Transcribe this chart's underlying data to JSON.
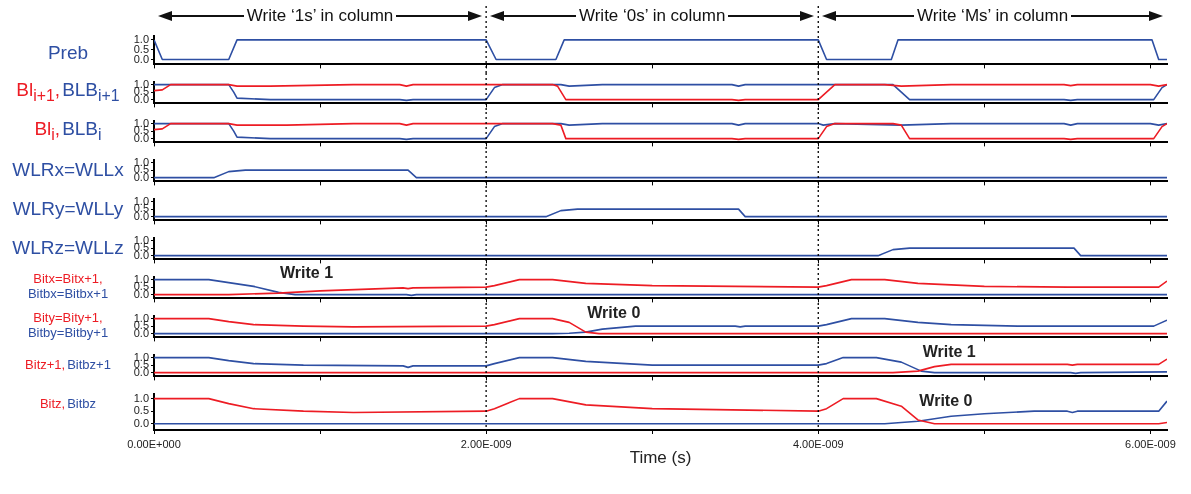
{
  "chart_data": [
    {
      "type": "line",
      "xlim": [
        0,
        6.1e-09
      ],
      "ylim": [
        -0.25,
        1.2
      ],
      "tick_labels": "y",
      "xticks": [
        {
          "value": 0,
          "label": null
        },
        {
          "value": 1e-09,
          "label": null
        },
        {
          "value": 2e-09,
          "label": null
        },
        {
          "value": 3e-09,
          "label": null
        },
        {
          "value": 4e-09,
          "label": null
        },
        {
          "value": 5e-09,
          "label": null
        },
        {
          "value": 6e-09,
          "label": null
        }
      ],
      "yticks": [
        {
          "value": 0,
          "label": "0.0"
        },
        {
          "value": 0.5,
          "label": "0.5"
        },
        {
          "value": 1,
          "label": "1.0"
        }
      ],
      "ref_lines": [
        {
          "axis": "x",
          "value": 2e-09,
          "line_style": "dotted"
        },
        {
          "axis": "x",
          "value": 4e-09,
          "line_style": "dotted"
        }
      ],
      "annotations": [
        "Write ‘1s’ in column",
        "Write ‘0s’ in column",
        "Write ‘Ms’ in column"
      ],
      "series": [
        {
          "name": "Preb",
          "color": "#2e4fa3",
          "x": [
            0,
            5e-11,
            4.5e-10,
            5e-10,
            2e-09,
            2.06e-09,
            2.42e-09,
            2.47e-09,
            4e-09,
            4.05e-09,
            4.44e-09,
            4.48e-09,
            6.01e-09,
            6.05e-09,
            6.1e-09
          ],
          "values": [
            1,
            0,
            0,
            1,
            1,
            0,
            0,
            1,
            1,
            0,
            0,
            1,
            1,
            0,
            0
          ]
        }
      ]
    },
    {
      "type": "line",
      "xlim": [
        0,
        6.1e-09
      ],
      "ylim": [
        -0.25,
        1.2
      ],
      "tick_labels": "y",
      "xticks": [
        {
          "value": 0,
          "label": null
        },
        {
          "value": 1e-09,
          "label": null
        },
        {
          "value": 2e-09,
          "label": null
        },
        {
          "value": 3e-09,
          "label": null
        },
        {
          "value": 4e-09,
          "label": null
        },
        {
          "value": 5e-09,
          "label": null
        },
        {
          "value": 6e-09,
          "label": null
        }
      ],
      "yticks": [
        {
          "value": 0,
          "label": "0.0"
        },
        {
          "value": 0.5,
          "label": "0.5"
        },
        {
          "value": 1,
          "label": "1.0"
        }
      ],
      "ref_lines": [
        {
          "axis": "x",
          "value": 2e-09,
          "line_style": "dotted"
        },
        {
          "axis": "x",
          "value": 4e-09,
          "line_style": "dotted"
        }
      ],
      "series": [
        {
          "name": "Bl$_{i+1}$,",
          "color": "#ed1c24",
          "x": [
            0,
            5e-11,
            1e-10,
            4.5e-10,
            5e-10,
            7e-10,
            1.2e-09,
            1.48e-09,
            1.52e-09,
            1.56e-09,
            2e-09,
            2.4e-09,
            2.43e-09,
            2.48e-09,
            3.48e-09,
            3.52e-09,
            3.56e-09,
            4e-09,
            4.1e-09,
            4.4e-09,
            4.5e-09,
            4.8e-09,
            5.48e-09,
            5.52e-09,
            5.56e-09,
            6e-09,
            6.05e-09,
            6.1e-09
          ],
          "values": [
            0.6,
            0.65,
            1,
            1,
            0.9,
            0.9,
            1,
            1,
            0.9,
            1,
            1,
            1,
            0.9,
            0,
            0,
            -0.05,
            0,
            0,
            1,
            1,
            0.9,
            1,
            1,
            0.93,
            1,
            1,
            0.9,
            1
          ]
        },
        {
          "name": "BLB$_{i+1}$",
          "color": "#2e4fa3",
          "x": [
            0,
            4.5e-10,
            4.8e-10,
            5e-10,
            7e-10,
            1.48e-09,
            1.52e-09,
            1.56e-09,
            2e-09,
            2.05e-09,
            2.1e-09,
            2.45e-09,
            2.5e-09,
            2.7e-09,
            3.48e-09,
            3.52e-09,
            3.56e-09,
            4e-09,
            4.45e-09,
            4.55e-09,
            5.48e-09,
            5.52e-09,
            5.56e-09,
            6.02e-09,
            6.07e-09,
            6.1e-09
          ],
          "values": [
            1,
            1,
            0.5,
            0.1,
            0,
            0,
            -0.05,
            0,
            0,
            0.8,
            1,
            1,
            0.9,
            1,
            1,
            0.9,
            1,
            1,
            1,
            0,
            0,
            -0.05,
            0,
            0,
            0.8,
            1
          ]
        }
      ]
    },
    {
      "type": "line",
      "xlim": [
        0,
        6.1e-09
      ],
      "ylim": [
        -0.25,
        1.2
      ],
      "tick_labels": "y",
      "xticks": [
        {
          "value": 0,
          "label": null
        },
        {
          "value": 1e-09,
          "label": null
        },
        {
          "value": 2e-09,
          "label": null
        },
        {
          "value": 3e-09,
          "label": null
        },
        {
          "value": 4e-09,
          "label": null
        },
        {
          "value": 5e-09,
          "label": null
        },
        {
          "value": 6e-09,
          "label": null
        }
      ],
      "yticks": [
        {
          "value": 0,
          "label": "0.0"
        },
        {
          "value": 0.5,
          "label": "0.5"
        },
        {
          "value": 1,
          "label": "1.0"
        }
      ],
      "ref_lines": [
        {
          "axis": "x",
          "value": 2e-09,
          "line_style": "dotted"
        },
        {
          "axis": "x",
          "value": 4e-09,
          "line_style": "dotted"
        }
      ],
      "series": [
        {
          "name": "Bl$_{i}$,",
          "color": "#ed1c24",
          "x": [
            0,
            5e-11,
            1e-10,
            4.5e-10,
            5e-10,
            8e-10,
            1.2e-09,
            1.48e-09,
            1.52e-09,
            1.56e-09,
            2e-09,
            2.4e-09,
            2.45e-09,
            2.48e-09,
            3.48e-09,
            3.52e-09,
            3.56e-09,
            4e-09,
            4.05e-09,
            4.1e-09,
            4.45e-09,
            4.5e-09,
            4.55e-09,
            5.48e-09,
            5.52e-09,
            5.56e-09,
            6.02e-09,
            6.07e-09,
            6.1e-09
          ],
          "values": [
            0.6,
            0.65,
            1,
            1,
            0.9,
            0.9,
            1,
            1,
            0.9,
            1,
            1,
            1,
            0.9,
            0,
            0,
            -0.05,
            0,
            0,
            0.8,
            1,
            1,
            0.9,
            0,
            0,
            -0.05,
            0,
            0,
            0.8,
            1
          ]
        },
        {
          "name": "BLB$_{i}$",
          "color": "#2e4fa3",
          "x": [
            0,
            4.5e-10,
            4.8e-10,
            5e-10,
            7e-10,
            1.48e-09,
            1.52e-09,
            1.56e-09,
            2e-09,
            2.05e-09,
            2.1e-09,
            2.45e-09,
            2.5e-09,
            2.7e-09,
            3.48e-09,
            3.52e-09,
            3.56e-09,
            4e-09,
            4.03e-09,
            4.1e-09,
            4.5e-09,
            4.8e-09,
            5.48e-09,
            5.52e-09,
            5.56e-09,
            6e-09,
            6.05e-09,
            6.1e-09
          ],
          "values": [
            1,
            1,
            0.5,
            0.1,
            0,
            0,
            -0.05,
            0,
            0,
            0.8,
            1,
            1,
            0.9,
            1,
            1,
            0.9,
            1,
            1,
            0.9,
            1,
            0.9,
            1,
            1,
            0.9,
            1,
            1,
            0.9,
            1
          ]
        }
      ]
    },
    {
      "type": "line",
      "xlim": [
        0,
        6.1e-09
      ],
      "ylim": [
        -0.25,
        1.2
      ],
      "tick_labels": "y",
      "xticks": [
        {
          "value": 0,
          "label": null
        },
        {
          "value": 1e-09,
          "label": null
        },
        {
          "value": 2e-09,
          "label": null
        },
        {
          "value": 3e-09,
          "label": null
        },
        {
          "value": 4e-09,
          "label": null
        },
        {
          "value": 5e-09,
          "label": null
        },
        {
          "value": 6e-09,
          "label": null
        }
      ],
      "yticks": [
        {
          "value": 0,
          "label": "0.0"
        },
        {
          "value": 0.5,
          "label": "0.5"
        },
        {
          "value": 1,
          "label": "1.0"
        }
      ],
      "ref_lines": [
        {
          "axis": "x",
          "value": 2e-09,
          "line_style": "dotted"
        },
        {
          "axis": "x",
          "value": 4e-09,
          "line_style": "dotted"
        }
      ],
      "series": [
        {
          "name": "WLRx=WLLx",
          "color": "#2e4fa3",
          "x": [
            0,
            3.6e-10,
            4.5e-10,
            5.5e-10,
            1.53e-09,
            1.58e-09,
            6.1e-09
          ],
          "values": [
            0,
            0,
            0.4,
            0.5,
            0.5,
            0,
            0
          ]
        }
      ]
    },
    {
      "type": "line",
      "xlim": [
        0,
        6.1e-09
      ],
      "ylim": [
        -0.25,
        1.2
      ],
      "tick_labels": "y",
      "xticks": [
        {
          "value": 0,
          "label": null
        },
        {
          "value": 1e-09,
          "label": null
        },
        {
          "value": 2e-09,
          "label": null
        },
        {
          "value": 3e-09,
          "label": null
        },
        {
          "value": 4e-09,
          "label": null
        },
        {
          "value": 5e-09,
          "label": null
        },
        {
          "value": 6e-09,
          "label": null
        }
      ],
      "yticks": [
        {
          "value": 0,
          "label": "0.0"
        },
        {
          "value": 0.5,
          "label": "0.5"
        },
        {
          "value": 1,
          "label": "1.0"
        }
      ],
      "ref_lines": [
        {
          "axis": "x",
          "value": 2e-09,
          "line_style": "dotted"
        },
        {
          "axis": "x",
          "value": 4e-09,
          "line_style": "dotted"
        }
      ],
      "series": [
        {
          "name": "WLRy=WLLy",
          "color": "#2e4fa3",
          "x": [
            0,
            2.36e-09,
            2.45e-09,
            2.55e-09,
            3.52e-09,
            3.56e-09,
            6.1e-09
          ],
          "values": [
            0,
            0,
            0.4,
            0.5,
            0.5,
            0,
            0
          ]
        }
      ]
    },
    {
      "type": "line",
      "xlim": [
        0,
        6.1e-09
      ],
      "ylim": [
        -0.25,
        1.2
      ],
      "tick_labels": "y",
      "xticks": [
        {
          "value": 0,
          "label": null
        },
        {
          "value": 1e-09,
          "label": null
        },
        {
          "value": 2e-09,
          "label": null
        },
        {
          "value": 3e-09,
          "label": null
        },
        {
          "value": 4e-09,
          "label": null
        },
        {
          "value": 5e-09,
          "label": null
        },
        {
          "value": 6e-09,
          "label": null
        }
      ],
      "yticks": [
        {
          "value": 0,
          "label": "0.0"
        },
        {
          "value": 0.5,
          "label": "0.5"
        },
        {
          "value": 1,
          "label": "1.0"
        }
      ],
      "ref_lines": [
        {
          "axis": "x",
          "value": 2e-09,
          "line_style": "dotted"
        },
        {
          "axis": "x",
          "value": 4e-09,
          "line_style": "dotted"
        }
      ],
      "series": [
        {
          "name": "WLRz=WLLz",
          "color": "#2e4fa3",
          "x": [
            0,
            4.36e-09,
            4.45e-09,
            4.55e-09,
            5.54e-09,
            5.58e-09,
            6.1e-09
          ],
          "values": [
            0,
            0,
            0.4,
            0.5,
            0.5,
            0,
            0
          ]
        }
      ]
    },
    {
      "type": "line",
      "xlim": [
        0,
        6.1e-09
      ],
      "ylim": [
        -0.25,
        1.2
      ],
      "tick_labels": "y",
      "xticks": [
        {
          "value": 0,
          "label": null
        },
        {
          "value": 1e-09,
          "label": null
        },
        {
          "value": 2e-09,
          "label": null
        },
        {
          "value": 3e-09,
          "label": null
        },
        {
          "value": 4e-09,
          "label": null
        },
        {
          "value": 5e-09,
          "label": null
        },
        {
          "value": 6e-09,
          "label": null
        }
      ],
      "yticks": [
        {
          "value": 0,
          "label": "0.0"
        },
        {
          "value": 0.5,
          "label": "0.5"
        },
        {
          "value": 1,
          "label": "1.0"
        }
      ],
      "ref_lines": [
        {
          "axis": "x",
          "value": 2e-09,
          "line_style": "dotted"
        },
        {
          "axis": "x",
          "value": 4e-09,
          "line_style": "dotted"
        }
      ],
      "annotations": [
        {
          "text": "Write 1",
          "x": 7.5e-10,
          "y": 0.15
        }
      ],
      "series": [
        {
          "name": "Bitx=Bitx+1,",
          "color": "#ed1c24",
          "x": [
            0,
            4.5e-10,
            7.5e-10,
            1e-09,
            1.5e-09,
            1.53e-09,
            1.56e-09,
            2e-09,
            2.05e-09,
            2.2e-09,
            2.4e-09,
            2.6e-09,
            3e-09,
            3.5e-09,
            4e-09,
            4.05e-09,
            4.2e-09,
            4.4e-09,
            4.6e-09,
            5e-09,
            5.5e-09,
            6.05e-09,
            6.1e-09
          ],
          "values": [
            0,
            0,
            0.1,
            0.25,
            0.45,
            0.4,
            0.45,
            0.5,
            0.6,
            1,
            1,
            0.75,
            0.6,
            0.55,
            0.5,
            0.6,
            1,
            1,
            0.75,
            0.55,
            0.5,
            0.5,
            0.9
          ]
        },
        {
          "name": "Bitbx=Bitbx+1",
          "color": "#2e4fa3",
          "x": [
            0,
            3.3e-10,
            4.5e-10,
            6e-10,
            7.5e-10,
            8.5e-10,
            1.52e-09,
            1.55e-09,
            1.58e-09,
            6.1e-09
          ],
          "values": [
            1,
            1,
            0.8,
            0.55,
            0.15,
            0,
            0,
            -0.05,
            0,
            0
          ]
        }
      ]
    },
    {
      "type": "line",
      "xlim": [
        0,
        6.1e-09
      ],
      "ylim": [
        -0.25,
        1.2
      ],
      "tick_labels": "y",
      "xticks": [
        {
          "value": 0,
          "label": null
        },
        {
          "value": 1e-09,
          "label": null
        },
        {
          "value": 2e-09,
          "label": null
        },
        {
          "value": 3e-09,
          "label": null
        },
        {
          "value": 4e-09,
          "label": null
        },
        {
          "value": 5e-09,
          "label": null
        },
        {
          "value": 6e-09,
          "label": null
        }
      ],
      "yticks": [
        {
          "value": 0,
          "label": "0.0"
        },
        {
          "value": 0.5,
          "label": "0.5"
        },
        {
          "value": 1,
          "label": "1.0"
        }
      ],
      "ref_lines": [
        {
          "axis": "x",
          "value": 2e-09,
          "line_style": "dotted"
        },
        {
          "axis": "x",
          "value": 4e-09,
          "line_style": "dotted"
        }
      ],
      "annotations": [
        {
          "text": "Write 0",
          "x": 2.6e-09,
          "y": 0.1
        }
      ],
      "series": [
        {
          "name": "Bity=Bity+1,",
          "color": "#ed1c24",
          "x": [
            0,
            3.3e-10,
            4.5e-10,
            6e-10,
            9e-10,
            1.2e-09,
            2e-09,
            2.05e-09,
            2.2e-09,
            2.4e-09,
            2.5e-09,
            2.6e-09,
            2.68e-09,
            6.1e-09
          ],
          "values": [
            1,
            1,
            0.8,
            0.6,
            0.5,
            0.45,
            0.5,
            0.6,
            1,
            1,
            0.75,
            0.1,
            0,
            0
          ]
        },
        {
          "name": "Bitby=Bitby+1",
          "color": "#2e4fa3",
          "x": [
            0,
            2.4e-09,
            2.5e-09,
            2.6e-09,
            2.7e-09,
            2.9e-09,
            3.5e-09,
            3.53e-09,
            3.56e-09,
            4e-09,
            4.05e-09,
            4.2e-09,
            4.4e-09,
            4.6e-09,
            4.8e-09,
            5.2e-09,
            6.02e-09,
            6.1e-09
          ],
          "values": [
            0,
            0,
            0.03,
            0.1,
            0.3,
            0.5,
            0.5,
            0.45,
            0.5,
            0.5,
            0.6,
            1,
            1,
            0.75,
            0.6,
            0.5,
            0.5,
            0.9
          ]
        }
      ]
    },
    {
      "type": "line",
      "xlim": [
        0,
        6.1e-09
      ],
      "ylim": [
        -0.25,
        1.2
      ],
      "tick_labels": "y",
      "xticks": [
        {
          "value": 0,
          "label": null
        },
        {
          "value": 1e-09,
          "label": null
        },
        {
          "value": 2e-09,
          "label": null
        },
        {
          "value": 3e-09,
          "label": null
        },
        {
          "value": 4e-09,
          "label": null
        },
        {
          "value": 5e-09,
          "label": null
        },
        {
          "value": 6e-09,
          "label": null
        }
      ],
      "yticks": [
        {
          "value": 0,
          "label": "0.0"
        },
        {
          "value": 0.5,
          "label": "0.5"
        },
        {
          "value": 1,
          "label": "1.0"
        }
      ],
      "ref_lines": [
        {
          "axis": "x",
          "value": 2e-09,
          "line_style": "dotted"
        },
        {
          "axis": "x",
          "value": 4e-09,
          "line_style": "dotted"
        }
      ],
      "annotations": [
        {
          "text": "Write 1",
          "x": 4.62e-09,
          "y": 0.1
        }
      ],
      "series": [
        {
          "name": "Bitz+1,",
          "color": "#ed1c24",
          "x": [
            0,
            4.45e-09,
            4.6e-09,
            4.7e-09,
            4.8e-09,
            5.5e-09,
            5.53e-09,
            5.56e-09,
            6.05e-09,
            6.1e-09
          ],
          "values": [
            0,
            0,
            0.1,
            0.4,
            0.55,
            0.55,
            0.5,
            0.55,
            0.55,
            0.9
          ]
        },
        {
          "name": "Bitbz+1",
          "color": "#2e4fa3",
          "x": [
            0,
            3.3e-10,
            4.5e-10,
            6e-10,
            9e-10,
            1.5e-09,
            1.53e-09,
            1.56e-09,
            2e-09,
            2.05e-09,
            2.2e-09,
            2.4e-09,
            2.6e-09,
            3e-09,
            4e-09,
            4.05e-09,
            4.15e-09,
            4.35e-09,
            4.5e-09,
            4.62e-09,
            4.7e-09,
            5.52e-09,
            5.55e-09,
            5.58e-09,
            6.1e-09
          ],
          "values": [
            1,
            1,
            0.8,
            0.6,
            0.5,
            0.45,
            0.35,
            0.45,
            0.45,
            0.6,
            1,
            1,
            0.75,
            0.5,
            0.5,
            0.6,
            1,
            1,
            0.7,
            0.1,
            0,
            0,
            -0.05,
            0,
            0.05
          ]
        }
      ]
    },
    {
      "type": "line",
      "xlim": [
        0,
        6.1e-09
      ],
      "ylim": [
        -0.25,
        1.2
      ],
      "xlabel": "Time (s)",
      "xticks": [
        {
          "value": 0,
          "label": "0.00E+000"
        },
        {
          "value": 1e-09,
          "label": null
        },
        {
          "value": 2e-09,
          "label": "2.00E-009"
        },
        {
          "value": 3e-09,
          "label": null
        },
        {
          "value": 4e-09,
          "label": "4.00E-009"
        },
        {
          "value": 5e-09,
          "label": null
        },
        {
          "value": 6e-09,
          "label": "6.00E-009"
        }
      ],
      "yticks": [
        {
          "value": 0,
          "label": "0.0"
        },
        {
          "value": 0.5,
          "label": "0.5"
        },
        {
          "value": 1,
          "label": "1.0"
        }
      ],
      "ref_lines": [
        {
          "axis": "x",
          "value": 2e-09,
          "line_style": "dotted"
        },
        {
          "axis": "x",
          "value": 4e-09,
          "line_style": "dotted"
        }
      ],
      "annotations": [
        {
          "text": "Write 0",
          "x": 4.6e-09,
          "y": 0.15
        }
      ],
      "series": [
        {
          "name": "Bitz,",
          "color": "#ed1c24",
          "x": [
            0,
            3.3e-10,
            4.5e-10,
            6e-10,
            9e-10,
            1.2e-09,
            2e-09,
            2.05e-09,
            2.2e-09,
            2.4e-09,
            2.6e-09,
            3e-09,
            4e-09,
            4.05e-09,
            4.15e-09,
            4.35e-09,
            4.5e-09,
            4.6e-09,
            4.7e-09,
            6.05e-09,
            6.1e-09
          ],
          "values": [
            1,
            1,
            0.8,
            0.6,
            0.5,
            0.45,
            0.5,
            0.6,
            1,
            1,
            0.75,
            0.6,
            0.5,
            0.6,
            1,
            1,
            0.7,
            0.15,
            0,
            0,
            0.05
          ]
        },
        {
          "name": "Bitbz",
          "color": "#2e4fa3",
          "x": [
            0,
            4.4e-09,
            4.6e-09,
            4.8e-09,
            5e-09,
            5.3e-09,
            5.5e-09,
            5.53e-09,
            5.56e-09,
            6.05e-09,
            6.1e-09
          ],
          "values": [
            0,
            0,
            0.1,
            0.3,
            0.4,
            0.5,
            0.5,
            0.45,
            0.5,
            0.5,
            0.9
          ]
        }
      ]
    }
  ]
}
